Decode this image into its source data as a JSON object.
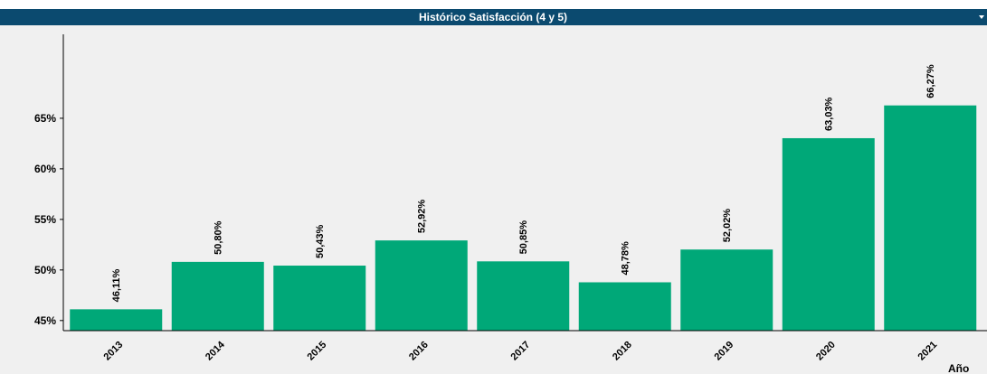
{
  "chart_data": {
    "type": "bar",
    "title": "Histórico Satisfacción (4 y 5)",
    "x_label": "Año",
    "categories": [
      "2013",
      "2014",
      "2015",
      "2016",
      "2017",
      "2018",
      "2019",
      "2020",
      "2021"
    ],
    "values": [
      46.11,
      50.8,
      50.43,
      52.92,
      50.85,
      48.78,
      52.02,
      63.03,
      66.27
    ],
    "value_labels": [
      "46,11%",
      "50,80%",
      "50,43%",
      "52,92%",
      "50,85%",
      "48,78%",
      "52,02%",
      "63,03%",
      "66,27%"
    ],
    "color": "#00a878",
    "ylim": [
      44,
      73.3
    ],
    "yticks": [
      {
        "value": 45,
        "label": "45%"
      },
      {
        "value": 50,
        "label": "50%"
      },
      {
        "value": 55,
        "label": "55%"
      },
      {
        "value": 60,
        "label": "60%"
      },
      {
        "value": 65,
        "label": "65%"
      }
    ],
    "grid": false
  }
}
